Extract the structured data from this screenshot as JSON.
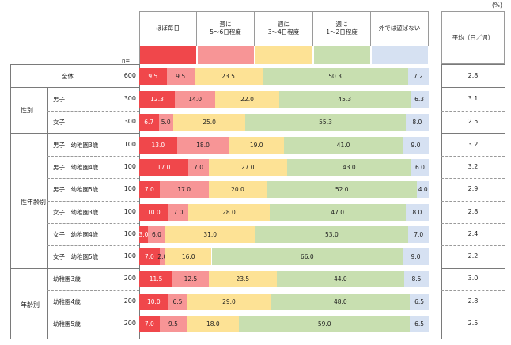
{
  "chart_data": {
    "type": "stacked-bar-horizontal",
    "unit_label": "(%)",
    "n_label": "n=",
    "avg_header": "平均（日／週）",
    "categories": [
      "ほぼ毎日",
      "週に\n5～6日程度",
      "週に\n3～4日程度",
      "週に\n1～2日程度",
      "外では遊ばない"
    ],
    "colors": [
      "#f0474b",
      "#f79596",
      "#fde295",
      "#c8dfb0",
      "#d6e1f2"
    ],
    "groups": [
      {
        "label": "",
        "rows": [
          {
            "label": "全体",
            "n": "600",
            "values": [
              9.5,
              9.5,
              23.5,
              50.3,
              7.2
            ],
            "avg": "2.8"
          }
        ]
      },
      {
        "label": "性別",
        "rows": [
          {
            "label": "男子",
            "n": "300",
            "values": [
              12.3,
              14.0,
              22.0,
              45.3,
              6.3
            ],
            "avg": "3.1"
          },
          {
            "label": "女子",
            "n": "300",
            "values": [
              6.7,
              5.0,
              25.0,
              55.3,
              8.0
            ],
            "avg": "2.5"
          }
        ]
      },
      {
        "label": "性年齢別",
        "rows": [
          {
            "label": "男子　幼稚園3歳",
            "n": "100",
            "values": [
              13.0,
              18.0,
              19.0,
              41.0,
              9.0
            ],
            "avg": "3.2"
          },
          {
            "label": "男子　幼稚園4歳",
            "n": "100",
            "values": [
              17.0,
              7.0,
              27.0,
              43.0,
              6.0
            ],
            "avg": "3.2"
          },
          {
            "label": "男子　幼稚園5歳",
            "n": "100",
            "values": [
              7.0,
              17.0,
              20.0,
              52.0,
              4.0
            ],
            "avg": "2.9"
          },
          {
            "label": "女子　幼稚園3歳",
            "n": "100",
            "values": [
              10.0,
              7.0,
              28.0,
              47.0,
              8.0
            ],
            "avg": "2.8"
          },
          {
            "label": "女子　幼稚園4歳",
            "n": "100",
            "values": [
              3.0,
              6.0,
              31.0,
              53.0,
              7.0
            ],
            "avg": "2.4"
          },
          {
            "label": "女子　幼稚園5歳",
            "n": "100",
            "values": [
              7.0,
              2.0,
              16.0,
              66.0,
              9.0
            ],
            "avg": "2.2"
          }
        ]
      },
      {
        "label": "年齢別",
        "rows": [
          {
            "label": "幼稚園3歳",
            "n": "200",
            "values": [
              11.5,
              12.5,
              23.5,
              44.0,
              8.5
            ],
            "avg": "3.0"
          },
          {
            "label": "幼稚園4歳",
            "n": "200",
            "values": [
              10.0,
              6.5,
              29.0,
              48.0,
              6.5
            ],
            "avg": "2.8"
          },
          {
            "label": "幼稚園5歳",
            "n": "200",
            "values": [
              7.0,
              9.5,
              18.0,
              59.0,
              6.5
            ],
            "avg": "2.5"
          }
        ]
      }
    ]
  }
}
